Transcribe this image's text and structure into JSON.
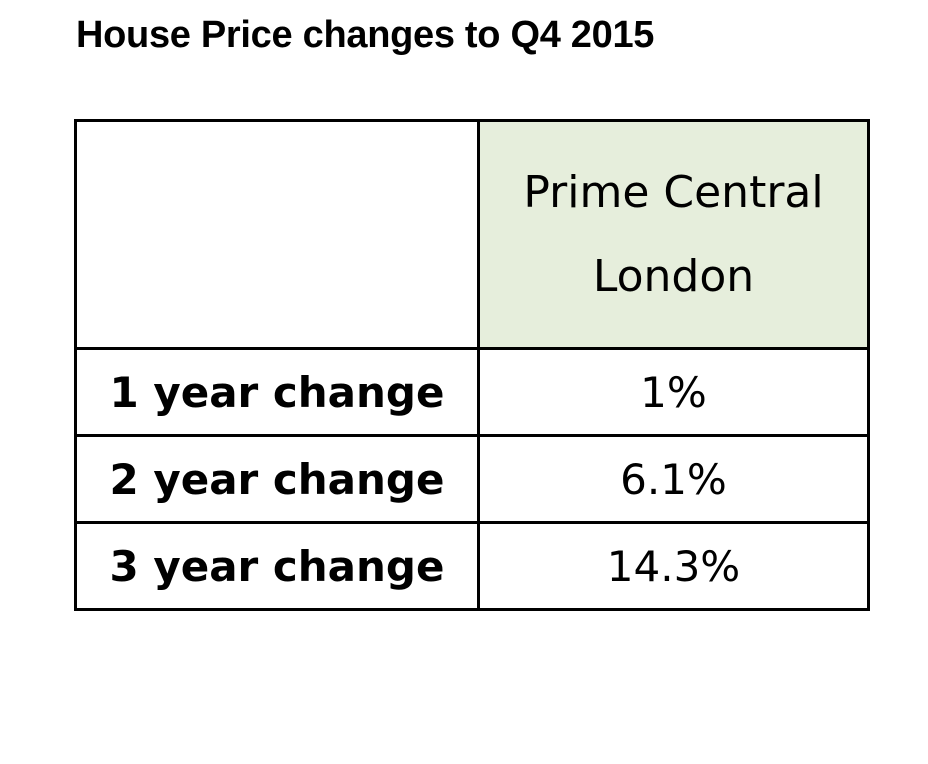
{
  "title": "House Price changes to Q4 2015",
  "colors": {
    "header_fill": "#e6eedc",
    "border": "#000000"
  },
  "chart_data": {
    "type": "table",
    "title": "House Price changes to Q4 2015",
    "columns": [
      "",
      "Prime Central London"
    ],
    "column_header_lines": [
      "Prime Central",
      "London"
    ],
    "rows": [
      {
        "label": "1 year change",
        "value": "1%"
      },
      {
        "label": "2 year change",
        "value": "6.1%"
      },
      {
        "label": "3 year change",
        "value": "14.3%"
      }
    ]
  }
}
